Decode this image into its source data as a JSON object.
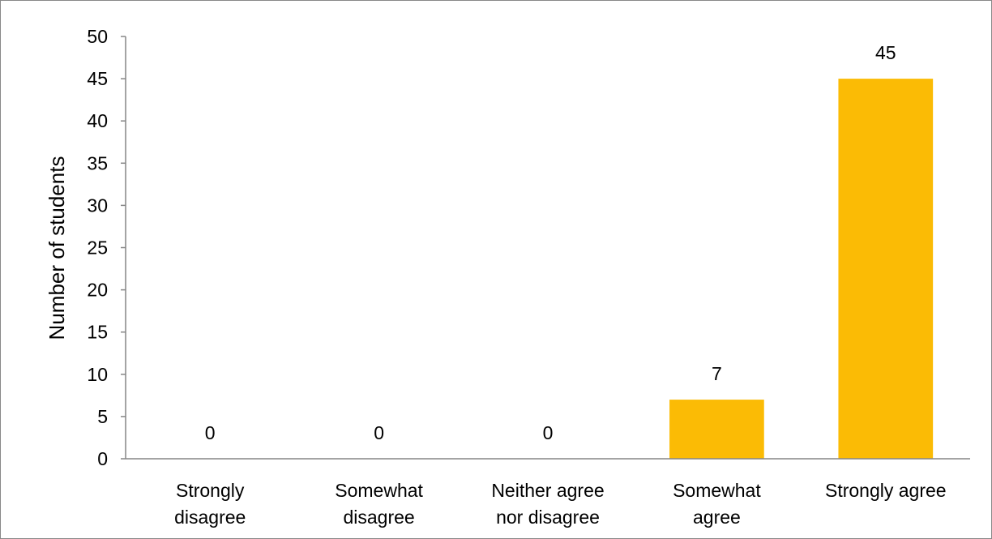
{
  "chart_data": {
    "type": "bar",
    "categories": [
      [
        "Strongly",
        "disagree"
      ],
      [
        "Somewhat",
        "disagree"
      ],
      [
        "Neither agree",
        "nor disagree"
      ],
      [
        "Somewhat",
        "agree"
      ],
      [
        "Strongly agree"
      ]
    ],
    "values": [
      0,
      0,
      0,
      7,
      45
    ],
    "data_labels": [
      "0",
      "0",
      "0",
      "7",
      "45"
    ],
    "title": "",
    "xlabel": "",
    "ylabel": "Number of students",
    "ylim": [
      0,
      50
    ],
    "yticks": [
      0,
      5,
      10,
      15,
      20,
      25,
      30,
      35,
      40,
      45,
      50
    ],
    "grid": false,
    "legend": "none",
    "bar_color": "#FBBB05",
    "axis_color": "#868686"
  }
}
